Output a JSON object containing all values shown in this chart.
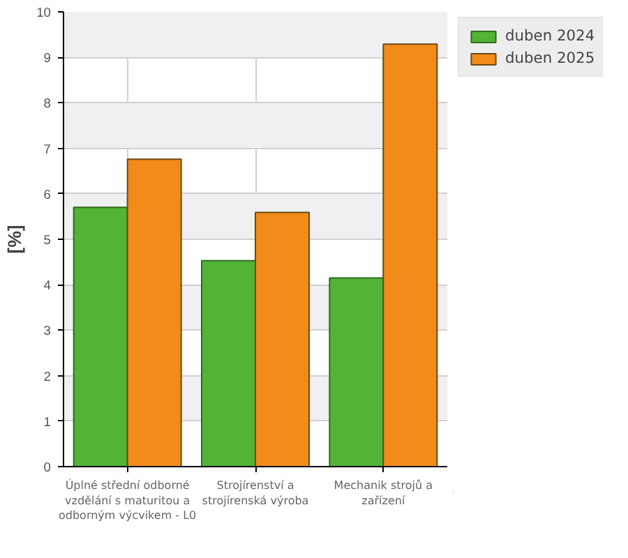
{
  "chart_data": {
    "type": "bar",
    "ylabel": "[%]",
    "categories": [
      "Úplné střední odborné vzdělání s maturitou a odborným výcvikem - L0",
      "Strojírenství a strojírenská výroba",
      "Mechanik strojů a zařízení"
    ],
    "series": [
      {
        "name": "duben 2024",
        "color": "#52b335",
        "values": [
          5.7,
          4.53,
          4.15
        ]
      },
      {
        "name": "duben 2025",
        "color": "#f28b1a",
        "values": [
          6.76,
          5.59,
          9.29
        ]
      }
    ],
    "ylim": [
      0,
      10
    ],
    "yticks": [
      0,
      1,
      2,
      3,
      4,
      5,
      6,
      7,
      8,
      9,
      10
    ],
    "grid": true,
    "legend": "top right"
  }
}
